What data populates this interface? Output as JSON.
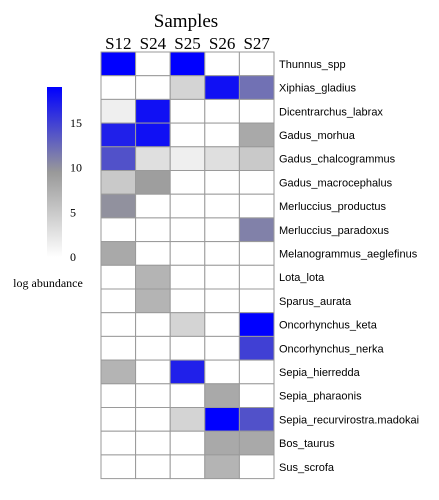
{
  "chart_data": {
    "type": "heatmap",
    "title": "Samples",
    "columns": [
      "S12",
      "S24",
      "S25",
      "S26",
      "S27"
    ],
    "rows": [
      "Thunnus_spp",
      "Xiphias_gladius",
      "Dicentrarchus_labrax",
      "Gadus_morhua",
      "Gadus_chalcogrammus",
      "Gadus_macrocephalus",
      "Merluccius_productus",
      "Merluccius_paradoxus",
      "Melanogrammus_aeglefinus",
      "Lota_lota",
      "Sparus_aurata",
      "Oncorhynchus_keta",
      "Oncorhynchus_nerka",
      "Sepia_hierredda",
      "Sepia_pharaonis",
      "Sepia_recurvirostra.madokai",
      "Bos_taurus",
      "Sus_scrofa"
    ],
    "values": [
      [
        19,
        0,
        19,
        0,
        0
      ],
      [
        0,
        0,
        4,
        18,
        12
      ],
      [
        1.5,
        18,
        0,
        0,
        0
      ],
      [
        17,
        18,
        0,
        0,
        8
      ],
      [
        14,
        3,
        1.5,
        3,
        5
      ],
      [
        5,
        9,
        0,
        0,
        0
      ],
      [
        10,
        0,
        0,
        0,
        0
      ],
      [
        0,
        0,
        0,
        0,
        11
      ],
      [
        8,
        0,
        0,
        0,
        0
      ],
      [
        0,
        7,
        0,
        0,
        0
      ],
      [
        0,
        7,
        0,
        0,
        0
      ],
      [
        0,
        0,
        4,
        0,
        19
      ],
      [
        0,
        0,
        0,
        0,
        15
      ],
      [
        7,
        0,
        17,
        0,
        0
      ],
      [
        0,
        0,
        0,
        8,
        0
      ],
      [
        0,
        0,
        4,
        19,
        14
      ],
      [
        0,
        0,
        0,
        8,
        8
      ],
      [
        0,
        0,
        0,
        7,
        0
      ]
    ],
    "colorbar": {
      "label": "log abundance",
      "ticks": [
        0,
        5,
        10,
        15
      ],
      "min": 0,
      "max": 19,
      "colors": {
        "low": "#ffffff",
        "mid": "#999999",
        "high": "#0000ff"
      }
    },
    "grid": true
  }
}
